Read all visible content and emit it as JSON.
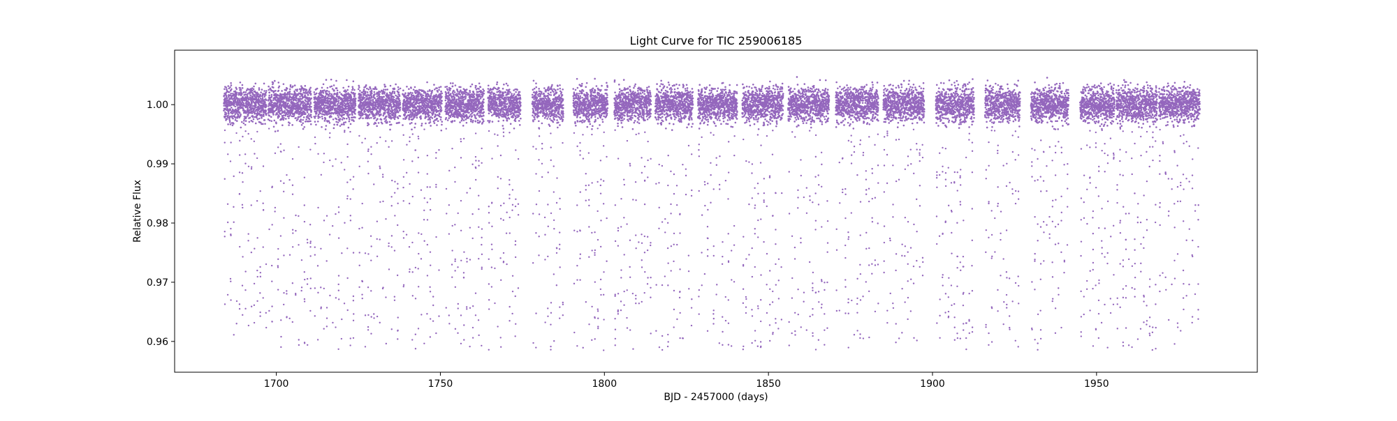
{
  "chart_data": {
    "type": "scatter",
    "title": "Light Curve for TIC 259006185",
    "xlabel": "BJD - 2457000 (days)",
    "ylabel": "Relative Flux",
    "xlim": [
      1669,
      1999
    ],
    "ylim": [
      0.9548,
      1.0092
    ],
    "x_ticks": [
      1700,
      1750,
      1800,
      1850,
      1900,
      1950
    ],
    "x_tick_labels": [
      "1700",
      "1750",
      "1800",
      "1850",
      "1900",
      "1950"
    ],
    "y_ticks": [
      0.96,
      0.97,
      0.98,
      0.99,
      1.0
    ],
    "y_tick_labels": [
      "0.96",
      "0.97",
      "0.98",
      "0.99",
      "1.00"
    ],
    "grid": false,
    "legend": "none",
    "marker_color": "#9467bd",
    "series": [
      {
        "segments": [
          {
            "start": 1684.0,
            "end": 1697.0,
            "median": 1.0,
            "scatter": 0.0027
          },
          {
            "start": 1697.5,
            "end": 1710.7,
            "median": 1.0,
            "scatter": 0.0027
          },
          {
            "start": 1711.5,
            "end": 1724.2,
            "median": 1.0,
            "scatter": 0.0027
          },
          {
            "start": 1725.0,
            "end": 1737.8,
            "median": 1.0,
            "scatter": 0.0027
          },
          {
            "start": 1738.5,
            "end": 1750.5,
            "median": 1.0,
            "scatter": 0.0027
          },
          {
            "start": 1751.5,
            "end": 1763.3,
            "median": 1.0,
            "scatter": 0.0027
          },
          {
            "start": 1764.5,
            "end": 1774.5,
            "median": 1.0,
            "scatter": 0.0027
          },
          {
            "start": 1778.0,
            "end": 1787.5,
            "median": 1.0,
            "scatter": 0.0027
          },
          {
            "start": 1790.5,
            "end": 1801.0,
            "median": 1.0,
            "scatter": 0.0027
          },
          {
            "start": 1803.0,
            "end": 1814.2,
            "median": 1.0,
            "scatter": 0.0027
          },
          {
            "start": 1815.5,
            "end": 1827.0,
            "median": 1.0,
            "scatter": 0.0027
          },
          {
            "start": 1828.5,
            "end": 1840.5,
            "median": 1.0,
            "scatter": 0.0027
          },
          {
            "start": 1842.0,
            "end": 1854.5,
            "median": 1.0,
            "scatter": 0.0027
          },
          {
            "start": 1856.0,
            "end": 1868.5,
            "median": 1.0,
            "scatter": 0.0027
          },
          {
            "start": 1870.5,
            "end": 1883.5,
            "median": 1.0,
            "scatter": 0.0027
          },
          {
            "start": 1885.0,
            "end": 1897.5,
            "median": 1.0,
            "scatter": 0.0027
          },
          {
            "start": 1901.0,
            "end": 1912.7,
            "median": 1.0,
            "scatter": 0.0027
          },
          {
            "start": 1916.0,
            "end": 1926.7,
            "median": 1.0,
            "scatter": 0.0027
          },
          {
            "start": 1930.0,
            "end": 1941.5,
            "median": 1.0,
            "scatter": 0.0027
          },
          {
            "start": 1945.0,
            "end": 1955.5,
            "median": 1.0,
            "scatter": 0.0027
          },
          {
            "start": 1956.0,
            "end": 1968.5,
            "median": 1.0,
            "scatter": 0.0027
          },
          {
            "start": 1969.0,
            "end": 1981.5,
            "median": 1.0,
            "scatter": 0.0027
          }
        ],
        "outlier_range": [
          0.9585,
          0.996
        ],
        "outlier_spacing_days": 0.9
      }
    ]
  }
}
